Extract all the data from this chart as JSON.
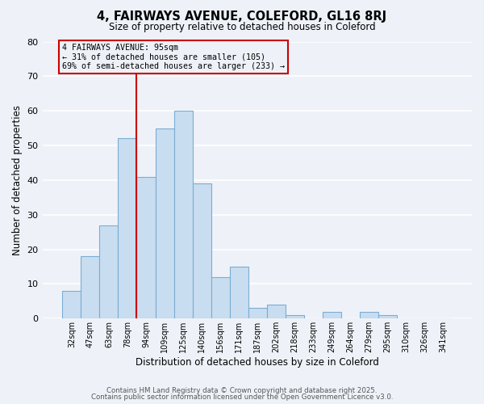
{
  "title": "4, FAIRWAYS AVENUE, COLEFORD, GL16 8RJ",
  "subtitle": "Size of property relative to detached houses in Coleford",
  "xlabel": "Distribution of detached houses by size in Coleford",
  "ylabel": "Number of detached properties",
  "footer1": "Contains HM Land Registry data © Crown copyright and database right 2025.",
  "footer2": "Contains public sector information licensed under the Open Government Licence v3.0.",
  "bin_labels": [
    "32sqm",
    "47sqm",
    "63sqm",
    "78sqm",
    "94sqm",
    "109sqm",
    "125sqm",
    "140sqm",
    "156sqm",
    "171sqm",
    "187sqm",
    "202sqm",
    "218sqm",
    "233sqm",
    "249sqm",
    "264sqm",
    "279sqm",
    "295sqm",
    "310sqm",
    "326sqm",
    "341sqm"
  ],
  "bar_values": [
    8,
    18,
    27,
    52,
    41,
    55,
    60,
    39,
    12,
    15,
    3,
    4,
    1,
    0,
    2,
    0,
    2,
    1,
    0,
    0,
    0
  ],
  "bar_color": "#c9ddf0",
  "bar_edge_color": "#7aadd4",
  "ylim": [
    0,
    80
  ],
  "yticks": [
    0,
    10,
    20,
    30,
    40,
    50,
    60,
    70,
    80
  ],
  "vline_color": "#cc0000",
  "annotation_title": "4 FAIRWAYS AVENUE: 95sqm",
  "annotation_line1": "← 31% of detached houses are smaller (105)",
  "annotation_line2": "69% of semi-detached houses are larger (233) →",
  "annotation_box_color": "#cc0000",
  "bg_color": "#eef2f8",
  "grid_color": "#ffffff"
}
